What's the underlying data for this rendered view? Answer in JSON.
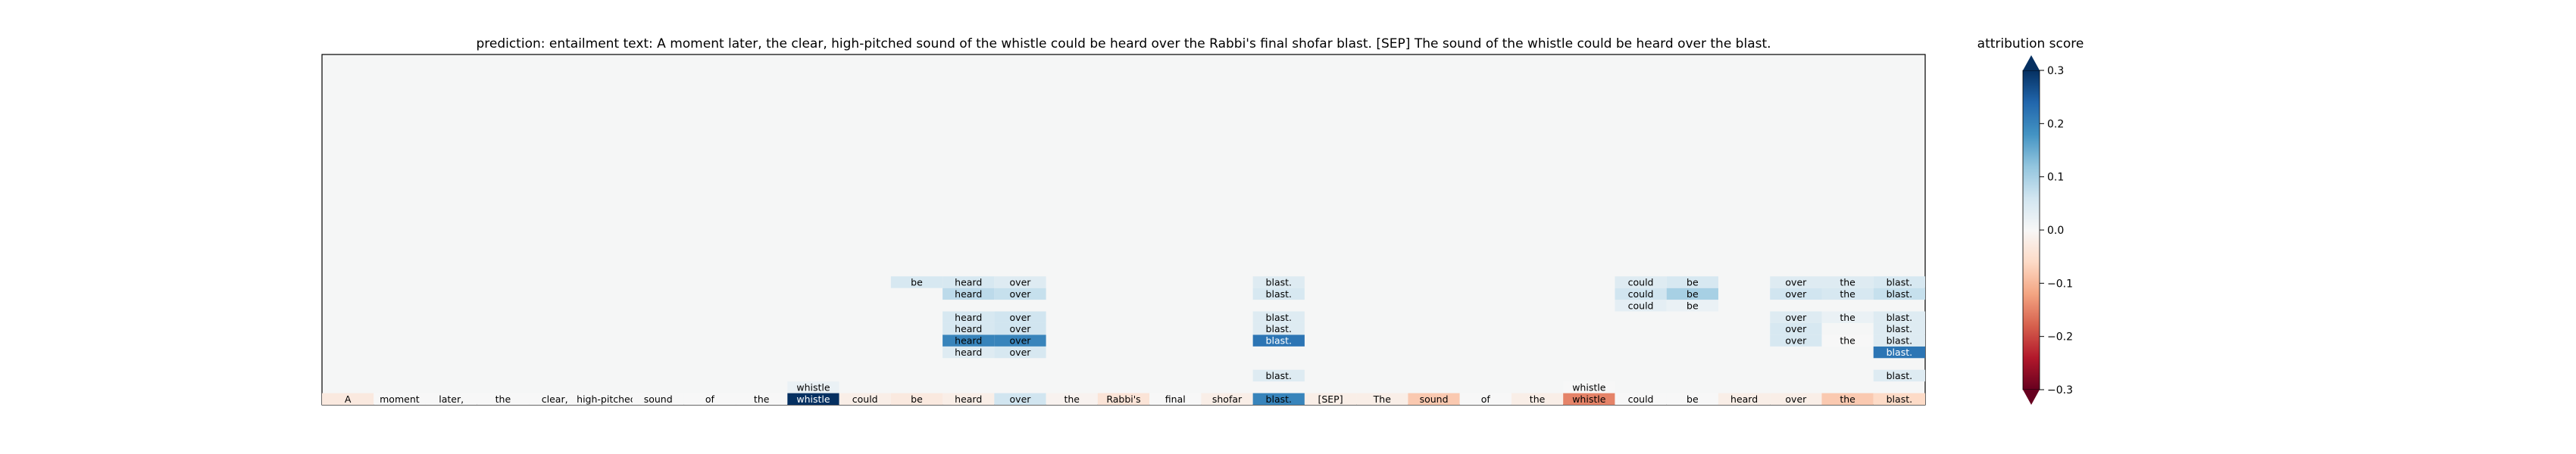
{
  "chart_data": {
    "type": "heatmap",
    "title": "prediction:  entailment     text:  A moment later, the clear, high-pitched sound of the whistle could be heard over the Rabbi's final shofar blast. [SEP] The sound of the whistle could be heard over the blast.",
    "colorbar": {
      "label": "attribution score",
      "range": [
        -0.3,
        0.3
      ],
      "ticks": [
        0.3,
        0.2,
        0.1,
        0.0,
        -0.1,
        -0.2,
        -0.3
      ],
      "tick_labels": [
        "0.3",
        "0.2",
        "0.1",
        "0.0",
        "−0.1",
        "−0.2",
        "−0.3"
      ],
      "colormap": "RdBu",
      "extend": "both"
    },
    "grid": false,
    "legend": "right",
    "n_rows": 30,
    "tokens": [
      "A",
      "moment",
      "later,",
      "the",
      "clear,",
      "high-pitched",
      "sound",
      "of",
      "the",
      "whistle",
      "could",
      "be",
      "heard",
      "over",
      "the",
      "Rabbi's",
      "final",
      "shofar",
      "blast.",
      "[SEP]",
      "The",
      "sound",
      "of",
      "the",
      "whistle",
      "could",
      "be",
      "heard",
      "over",
      "the",
      "blast."
    ],
    "base_scores": [
      -0.03,
      0.0,
      0.0,
      0.0,
      0.0,
      0.0,
      0.0,
      0.0,
      0.0,
      0.3,
      -0.02,
      -0.03,
      -0.02,
      0.06,
      -0.01,
      -0.04,
      0.0,
      -0.02,
      0.2,
      -0.02,
      -0.02,
      -0.08,
      0.0,
      -0.02,
      -0.15,
      0.0,
      0.0,
      -0.02,
      -0.02,
      -0.08,
      -0.06
    ],
    "cells": [
      {
        "row": 1,
        "token": 9,
        "text": "whistle",
        "score": 0.02
      },
      {
        "row": 1,
        "token": 24,
        "text": "whistle",
        "score": 0.0
      },
      {
        "row": 2,
        "token": 18,
        "text": "blast.",
        "score": 0.04
      },
      {
        "row": 2,
        "token": 30,
        "text": "blast.",
        "score": 0.04
      },
      {
        "row": 4,
        "token": 12,
        "text": "heard",
        "score": 0.04
      },
      {
        "row": 4,
        "token": 13,
        "text": "over",
        "score": 0.05
      },
      {
        "row": 4,
        "token": 30,
        "text": "blast.",
        "score": 0.22
      },
      {
        "row": 5,
        "token": 12,
        "text": "heard",
        "score": 0.2
      },
      {
        "row": 5,
        "token": 13,
        "text": "over",
        "score": 0.2
      },
      {
        "row": 5,
        "token": 18,
        "text": "blast.",
        "score": 0.22
      },
      {
        "row": 5,
        "token": 28,
        "text": "over",
        "score": 0.05
      },
      {
        "row": 5,
        "token": 29,
        "text": "the",
        "score": 0.0
      },
      {
        "row": 5,
        "token": 30,
        "text": "blast.",
        "score": 0.04
      },
      {
        "row": 6,
        "token": 12,
        "text": "heard",
        "score": 0.05
      },
      {
        "row": 6,
        "token": 13,
        "text": "over",
        "score": 0.06
      },
      {
        "row": 6,
        "token": 18,
        "text": "blast.",
        "score": 0.04
      },
      {
        "row": 6,
        "token": 28,
        "text": "over",
        "score": 0.05
      },
      {
        "row": 6,
        "token": 30,
        "text": "blast.",
        "score": 0.04
      },
      {
        "row": 7,
        "token": 12,
        "text": "heard",
        "score": 0.05
      },
      {
        "row": 7,
        "token": 13,
        "text": "over",
        "score": 0.06
      },
      {
        "row": 7,
        "token": 18,
        "text": "blast.",
        "score": 0.04
      },
      {
        "row": 7,
        "token": 28,
        "text": "over",
        "score": 0.04
      },
      {
        "row": 7,
        "token": 29,
        "text": "the",
        "score": 0.02
      },
      {
        "row": 7,
        "token": 30,
        "text": "blast.",
        "score": 0.04
      },
      {
        "row": 8,
        "token": 25,
        "text": "could",
        "score": 0.03
      },
      {
        "row": 8,
        "token": 26,
        "text": "be",
        "score": 0.02
      },
      {
        "row": 9,
        "token": 12,
        "text": "heard",
        "score": 0.08
      },
      {
        "row": 9,
        "token": 13,
        "text": "over",
        "score": 0.07
      },
      {
        "row": 9,
        "token": 18,
        "text": "blast.",
        "score": 0.05
      },
      {
        "row": 9,
        "token": 25,
        "text": "could",
        "score": 0.06
      },
      {
        "row": 9,
        "token": 26,
        "text": "be",
        "score": 0.1
      },
      {
        "row": 9,
        "token": 28,
        "text": "over",
        "score": 0.06
      },
      {
        "row": 9,
        "token": 29,
        "text": "the",
        "score": 0.05
      },
      {
        "row": 9,
        "token": 30,
        "text": "blast.",
        "score": 0.07
      },
      {
        "row": 10,
        "token": 11,
        "text": "be",
        "score": 0.05
      },
      {
        "row": 10,
        "token": 12,
        "text": "heard",
        "score": 0.05
      },
      {
        "row": 10,
        "token": 13,
        "text": "over",
        "score": 0.04
      },
      {
        "row": 10,
        "token": 18,
        "text": "blast.",
        "score": 0.04
      },
      {
        "row": 10,
        "token": 25,
        "text": "could",
        "score": 0.04
      },
      {
        "row": 10,
        "token": 26,
        "text": "be",
        "score": 0.05
      },
      {
        "row": 10,
        "token": 28,
        "text": "over",
        "score": 0.04
      },
      {
        "row": 10,
        "token": 29,
        "text": "the",
        "score": 0.04
      },
      {
        "row": 10,
        "token": 30,
        "text": "blast.",
        "score": 0.05
      }
    ]
  }
}
